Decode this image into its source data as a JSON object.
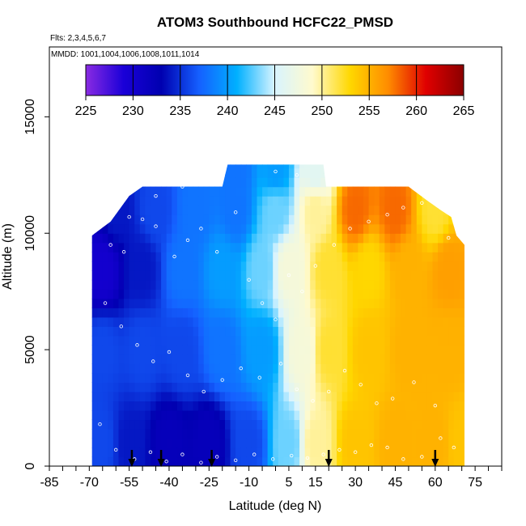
{
  "page": {
    "title": "ATOM3 Southbound HCFC22_PMSD",
    "flights_note": "Flts: 2,3,4,5,6,7",
    "mmdd_note": "MMDD: 1001,1004,1006,1008,1011,1014"
  },
  "chart_data": {
    "type": "heatmap",
    "title": "ATOM3 Southbound HCFC22_PMSD",
    "xlabel": "Latitude (deg N)",
    "ylabel": "Altitude (m)",
    "xlim": [
      -85,
      85
    ],
    "ylim": [
      0,
      18000
    ],
    "x_tick_values": [
      -85,
      -80,
      -75,
      -70,
      -65,
      -60,
      -55,
      -50,
      -45,
      -40,
      -35,
      -30,
      -25,
      -20,
      -15,
      -10,
      -5,
      0,
      5,
      10,
      15,
      20,
      25,
      30,
      35,
      40,
      45,
      50,
      55,
      60,
      65,
      70,
      75,
      80,
      85
    ],
    "x_tick_labels": [
      "-85",
      "-70",
      "-55",
      "-40",
      "-25",
      "-10",
      "5",
      "15",
      "30",
      "45",
      "60",
      "75"
    ],
    "x_label_values": [
      -85,
      -70,
      -55,
      -40,
      -25,
      -10,
      5,
      15,
      30,
      45,
      60,
      75
    ],
    "y_ticks": [
      0,
      5000,
      10000,
      15000
    ],
    "y_tick_labels": [
      "0",
      "5000",
      "10000",
      "15000"
    ],
    "colorbar": {
      "min": 225,
      "max": 265,
      "tick_labels": [
        "225",
        "230",
        "235",
        "240",
        "245",
        "250",
        "255",
        "260",
        "265"
      ],
      "tick_values": [
        225,
        230,
        235,
        240,
        245,
        250,
        255,
        260,
        265
      ],
      "stops": [
        "#8a2be2",
        "#1a00d8",
        "#0000b0",
        "#1560ff",
        "#00b0ff",
        "#d8f4ff",
        "#fffacd",
        "#ffd700",
        "#ff8c00",
        "#e00000",
        "#8b0000"
      ]
    },
    "region": {
      "lat_min": -69,
      "lat_max": 71,
      "top_altitude_by_lat": [
        [
          -69,
          9900
        ],
        [
          -62,
          10500
        ],
        [
          -55,
          11600
        ],
        [
          -50,
          12000
        ],
        [
          -20,
          12000
        ],
        [
          -18,
          12950
        ],
        [
          12,
          12950
        ],
        [
          18,
          12950
        ],
        [
          19,
          12000
        ],
        [
          50,
          12000
        ],
        [
          57,
          11400
        ],
        [
          62,
          11000
        ],
        [
          66,
          10700
        ],
        [
          68,
          9900
        ],
        [
          71,
          9500
        ]
      ]
    },
    "field_samples": [
      {
        "lat": -65,
        "alt": 1000,
        "value": 236
      },
      {
        "lat": -55,
        "alt": 1000,
        "value": 234
      },
      {
        "lat": -40,
        "alt": 1000,
        "value": 232
      },
      {
        "lat": -25,
        "alt": 1000,
        "value": 232
      },
      {
        "lat": -10,
        "alt": 1000,
        "value": 236
      },
      {
        "lat": 5,
        "alt": 1000,
        "value": 243
      },
      {
        "lat": 15,
        "alt": 1000,
        "value": 250
      },
      {
        "lat": 30,
        "alt": 1000,
        "value": 254
      },
      {
        "lat": 45,
        "alt": 1000,
        "value": 255
      },
      {
        "lat": 60,
        "alt": 1000,
        "value": 255
      },
      {
        "lat": 70,
        "alt": 1000,
        "value": 254
      },
      {
        "lat": -65,
        "alt": 5000,
        "value": 236
      },
      {
        "lat": -50,
        "alt": 5000,
        "value": 236
      },
      {
        "lat": -35,
        "alt": 5000,
        "value": 236
      },
      {
        "lat": -20,
        "alt": 5000,
        "value": 238
      },
      {
        "lat": -5,
        "alt": 5000,
        "value": 240
      },
      {
        "lat": 10,
        "alt": 5000,
        "value": 248
      },
      {
        "lat": 20,
        "alt": 5000,
        "value": 252
      },
      {
        "lat": 35,
        "alt": 5000,
        "value": 254
      },
      {
        "lat": 50,
        "alt": 5000,
        "value": 255
      },
      {
        "lat": 65,
        "alt": 5000,
        "value": 255
      },
      {
        "lat": -65,
        "alt": 8500,
        "value": 230
      },
      {
        "lat": -50,
        "alt": 8500,
        "value": 234
      },
      {
        "lat": -35,
        "alt": 8500,
        "value": 238
      },
      {
        "lat": -20,
        "alt": 8500,
        "value": 240
      },
      {
        "lat": -5,
        "alt": 8500,
        "value": 243
      },
      {
        "lat": 5,
        "alt": 8500,
        "value": 248
      },
      {
        "lat": 20,
        "alt": 8500,
        "value": 252
      },
      {
        "lat": 35,
        "alt": 8500,
        "value": 253
      },
      {
        "lat": 50,
        "alt": 8500,
        "value": 255
      },
      {
        "lat": 65,
        "alt": 8500,
        "value": 256
      },
      {
        "lat": -60,
        "alt": 11000,
        "value": 234
      },
      {
        "lat": -45,
        "alt": 11000,
        "value": 236
      },
      {
        "lat": -30,
        "alt": 11000,
        "value": 238
      },
      {
        "lat": -15,
        "alt": 11000,
        "value": 238
      },
      {
        "lat": 0,
        "alt": 11000,
        "value": 243
      },
      {
        "lat": 15,
        "alt": 11000,
        "value": 250
      },
      {
        "lat": 30,
        "alt": 11000,
        "value": 258
      },
      {
        "lat": 45,
        "alt": 11000,
        "value": 258
      },
      {
        "lat": 60,
        "alt": 11000,
        "value": 252
      },
      {
        "lat": -15,
        "alt": 12700,
        "value": 238
      },
      {
        "lat": 0,
        "alt": 12700,
        "value": 240
      },
      {
        "lat": 15,
        "alt": 12700,
        "value": 246
      }
    ],
    "arrow_latitudes": [
      -54,
      -43,
      -24,
      20,
      60
    ],
    "sample_points": [
      [
        -62,
        9500
      ],
      [
        -57,
        9200
      ],
      [
        -55,
        10700
      ],
      [
        -50,
        10600
      ],
      [
        -45,
        10300
      ],
      [
        -38,
        9000
      ],
      [
        -33,
        9700
      ],
      [
        -28,
        10200
      ],
      [
        -22,
        9200
      ],
      [
        -15,
        10900
      ],
      [
        -10,
        8000
      ],
      [
        -5,
        7000
      ],
      [
        0,
        6300
      ],
      [
        5,
        8200
      ],
      [
        10,
        7500
      ],
      [
        15,
        8600
      ],
      [
        22,
        9500
      ],
      [
        28,
        10200
      ],
      [
        35,
        10500
      ],
      [
        42,
        10800
      ],
      [
        48,
        11100
      ],
      [
        55,
        11300
      ],
      [
        60,
        11700
      ],
      [
        65,
        9800
      ],
      [
        -64,
        7000
      ],
      [
        -58,
        6000
      ],
      [
        -52,
        5200
      ],
      [
        -46,
        4500
      ],
      [
        -40,
        4900
      ],
      [
        -33,
        3900
      ],
      [
        -27,
        3200
      ],
      [
        -20,
        3700
      ],
      [
        -13,
        4200
      ],
      [
        -6,
        3800
      ],
      [
        2,
        4400
      ],
      [
        8,
        3300
      ],
      [
        14,
        2800
      ],
      [
        20,
        3200
      ],
      [
        26,
        4100
      ],
      [
        32,
        3500
      ],
      [
        38,
        2700
      ],
      [
        44,
        2900
      ],
      [
        52,
        3600
      ],
      [
        60,
        2600
      ],
      [
        -66,
        1800
      ],
      [
        -60,
        700
      ],
      [
        -53,
        300
      ],
      [
        -47,
        600
      ],
      [
        -41,
        200
      ],
      [
        -35,
        500
      ],
      [
        -28,
        150
      ],
      [
        -22,
        400
      ],
      [
        -15,
        250
      ],
      [
        -8,
        500
      ],
      [
        -1,
        300
      ],
      [
        6,
        450
      ],
      [
        12,
        350
      ],
      [
        18,
        500
      ],
      [
        24,
        700
      ],
      [
        30,
        600
      ],
      [
        36,
        900
      ],
      [
        42,
        800
      ],
      [
        48,
        300
      ],
      [
        55,
        400
      ],
      [
        62,
        1200
      ],
      [
        67,
        800
      ],
      [
        -61,
        11900
      ],
      [
        -52,
        12200
      ],
      [
        -45,
        11600
      ],
      [
        -35,
        12000
      ],
      [
        0,
        12650
      ],
      [
        8,
        12500
      ]
    ]
  }
}
